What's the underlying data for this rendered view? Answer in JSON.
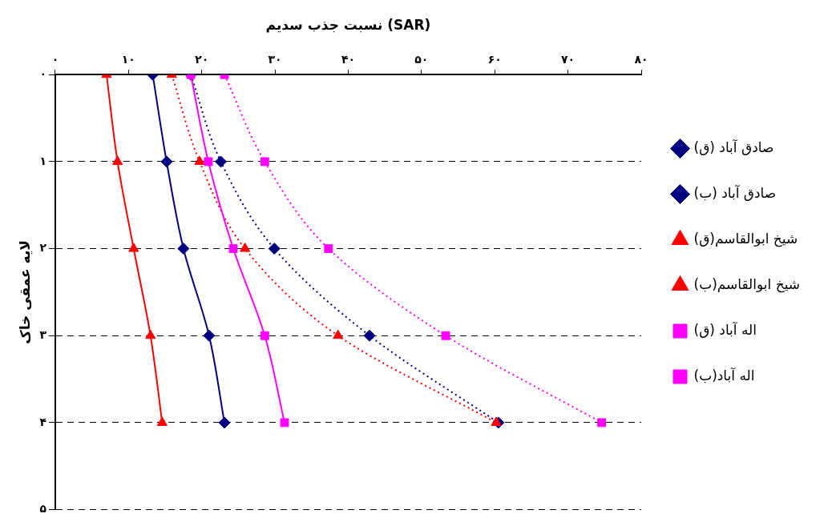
{
  "chart_data": {
    "type": "line",
    "xlabel": "نسبت جذب سدیم (SAR)",
    "ylabel": "لایه عمقی خاک",
    "xlim": [
      0,
      80
    ],
    "xticks": [
      {
        "value": 0,
        "label": "۰"
      },
      {
        "value": 10,
        "label": "۱۰"
      },
      {
        "value": 20,
        "label": "۲۰"
      },
      {
        "value": 30,
        "label": "۳۰"
      },
      {
        "value": 40,
        "label": "۴۰"
      },
      {
        "value": 50,
        "label": "۵۰"
      },
      {
        "value": 60,
        "label": "۶۰"
      },
      {
        "value": 70,
        "label": "۷۰"
      },
      {
        "value": 80,
        "label": "۸۰"
      }
    ],
    "ylim": [
      5,
      0
    ],
    "yticks": [
      {
        "value": 0,
        "label": "۰"
      },
      {
        "value": 1,
        "label": "۱"
      },
      {
        "value": 2,
        "label": "۲"
      },
      {
        "value": 3,
        "label": "۳"
      },
      {
        "value": 4,
        "label": "۴"
      },
      {
        "value": 5,
        "label": "۵"
      }
    ],
    "grid": "y",
    "legend": "right",
    "series": [
      {
        "name": "صادق آباد (ق)",
        "color": "#000080",
        "marker": "diamond",
        "line_style": "dotted",
        "x": [
          18.5,
          22.6,
          29.9,
          42.9,
          60.5
        ],
        "values": [
          0,
          1,
          2,
          3,
          4
        ]
      },
      {
        "name": "صادق آباد (ب)",
        "color": "#000080",
        "marker": "diamond",
        "line_style": "solid",
        "x": [
          13.3,
          15.2,
          17.5,
          21.0,
          23.1
        ],
        "values": [
          0,
          1,
          2,
          3,
          4
        ]
      },
      {
        "name": "شیخ ابوالقاسم(ق)",
        "color": "#ff0000",
        "marker": "triangle",
        "line_style": "dotted",
        "x": [
          15.9,
          19.7,
          25.9,
          38.6,
          60.2
        ],
        "values": [
          0,
          1,
          2,
          3,
          4
        ]
      },
      {
        "name": "شیخ ابوالقاسم(ب)",
        "color": "#ff0000",
        "marker": "triangle",
        "line_style": "solid",
        "x": [
          7.0,
          8.5,
          10.7,
          13.0,
          14.6
        ],
        "values": [
          0,
          1,
          2,
          3,
          4
        ]
      },
      {
        "name": "اله آباد (ق)",
        "color": "#ff00ff",
        "marker": "square",
        "line_style": "dotted",
        "x": [
          23.1,
          28.6,
          37.3,
          53.3,
          74.6
        ],
        "values": [
          0,
          1,
          2,
          3,
          4
        ]
      },
      {
        "name": "اله آباد(ب)",
        "color": "#ff00ff",
        "marker": "square",
        "line_style": "solid",
        "x": [
          18.5,
          20.9,
          24.3,
          28.6,
          31.3
        ],
        "values": [
          0,
          1,
          2,
          3,
          4
        ]
      }
    ]
  }
}
